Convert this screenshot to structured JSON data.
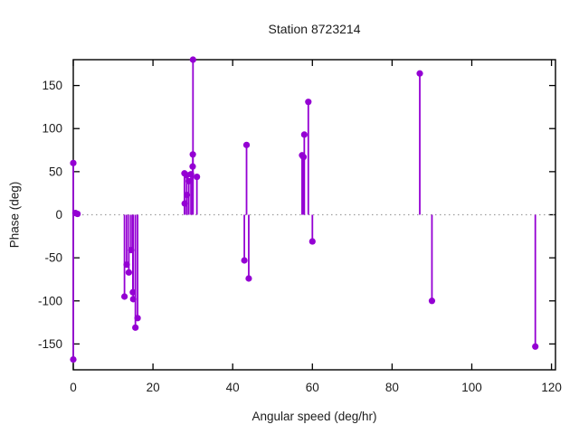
{
  "chart_data": {
    "type": "stem",
    "title": "Station 8723214",
    "xlabel": "Angular speed (deg/hr)",
    "ylabel": "Phase (deg)",
    "xlim": [
      0,
      121
    ],
    "ylim": [
      -180,
      180
    ],
    "xticks": [
      0,
      20,
      40,
      60,
      80,
      100,
      120
    ],
    "yticks": [
      -150,
      -100,
      -50,
      0,
      50,
      100,
      150
    ],
    "grid": false,
    "legend": "none",
    "zero_line_style": "dotted",
    "series_color": "#9400d3",
    "axis_color": "#000000",
    "zero_line_color": "#9e9e9e",
    "points": [
      {
        "x": 0.0,
        "y": 60
      },
      {
        "x": 0.0,
        "y": -168
      },
      {
        "x": 0.54,
        "y": 2
      },
      {
        "x": 1.06,
        "y": 1
      },
      {
        "x": 12.85,
        "y": -95
      },
      {
        "x": 13.4,
        "y": -58
      },
      {
        "x": 13.94,
        "y": -67
      },
      {
        "x": 14.5,
        "y": -41
      },
      {
        "x": 14.96,
        "y": -90
      },
      {
        "x": 15.04,
        "y": -98
      },
      {
        "x": 15.59,
        "y": -131
      },
      {
        "x": 16.14,
        "y": -120
      },
      {
        "x": 27.9,
        "y": 48
      },
      {
        "x": 27.97,
        "y": 13
      },
      {
        "x": 28.44,
        "y": 46
      },
      {
        "x": 28.51,
        "y": 23
      },
      {
        "x": 28.98,
        "y": 39
      },
      {
        "x": 29.53,
        "y": 47
      },
      {
        "x": 29.96,
        "y": 56
      },
      {
        "x": 30.0,
        "y": 70
      },
      {
        "x": 30.04,
        "y": 180
      },
      {
        "x": 31.02,
        "y": 44
      },
      {
        "x": 42.93,
        "y": -53
      },
      {
        "x": 43.48,
        "y": 81
      },
      {
        "x": 44.03,
        "y": -74
      },
      {
        "x": 57.42,
        "y": 69
      },
      {
        "x": 57.77,
        "y": 67
      },
      {
        "x": 57.97,
        "y": 93
      },
      {
        "x": 58.98,
        "y": 131
      },
      {
        "x": 60.0,
        "y": -31
      },
      {
        "x": 86.95,
        "y": 164
      },
      {
        "x": 90.0,
        "y": -100
      },
      {
        "x": 115.94,
        "y": -153
      }
    ]
  }
}
